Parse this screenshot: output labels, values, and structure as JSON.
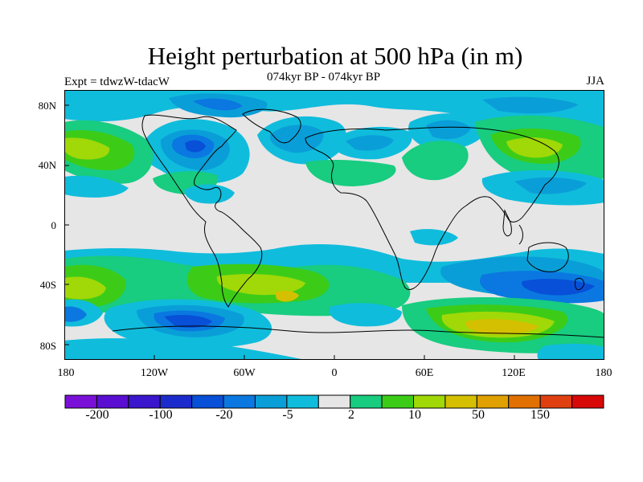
{
  "title": "Height perturbation at 500 hPa (in m)",
  "experiment": "Expt = tdwzW-tdacW",
  "period": "074kyr BP - 074kyr BP",
  "season": "JJA",
  "lat_labels": [
    "80N",
    "40N",
    "0",
    "40S",
    "80S"
  ],
  "lon_labels": [
    "180",
    "120W",
    "60W",
    "0",
    "60E",
    "120E",
    "180"
  ],
  "colorbar": {
    "colors": [
      "#7a10d8",
      "#5a0ed2",
      "#3a16cc",
      "#1c2ccc",
      "#0850d8",
      "#0a78e0",
      "#0a9ed8",
      "#10bcdc",
      "#e6e6e6",
      "#18cc80",
      "#3ccc18",
      "#a0d808",
      "#d4c000",
      "#e0a000",
      "#e07000",
      "#e04010",
      "#d80808"
    ],
    "labels": [
      "-200",
      "-100",
      "-20",
      "-5",
      "2",
      "10",
      "50",
      "150"
    ]
  }
}
